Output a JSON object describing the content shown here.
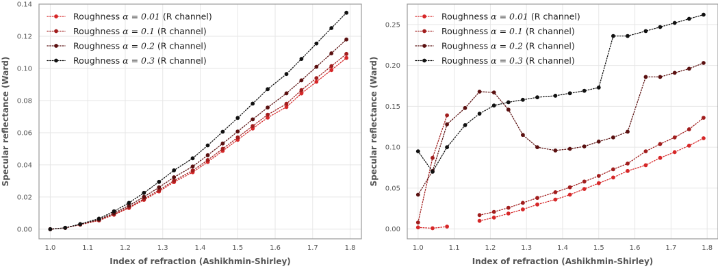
{
  "chart_data": [
    {
      "type": "line",
      "title": "",
      "xlabel": "Index of refraction (Ashikhmin-Shirley)",
      "ylabel": "Specular reflectance (Ward)",
      "xlim": [
        0.97,
        1.83
      ],
      "ylim": [
        -0.006,
        0.14
      ],
      "xticks": [
        "1.0",
        "1.1",
        "1.2",
        "1.3",
        "1.4",
        "1.5",
        "1.6",
        "1.7",
        "1.8"
      ],
      "yticks": [
        "0.00",
        "0.02",
        "0.04",
        "0.06",
        "0.08",
        "0.10",
        "0.12",
        "0.14"
      ],
      "grid": true,
      "legend_position": "top-left",
      "x": [
        1.0,
        1.04,
        1.08,
        1.13,
        1.17,
        1.21,
        1.25,
        1.29,
        1.33,
        1.38,
        1.42,
        1.46,
        1.5,
        1.54,
        1.58,
        1.63,
        1.67,
        1.71,
        1.75,
        1.79
      ],
      "series": [
        {
          "name_prefix": "Roughness ",
          "name_math": "α = 0.01",
          "name_suffix": " (R channel)",
          "color": "#d62728",
          "values": [
            0.0,
            0.0008,
            0.0028,
            0.0054,
            0.009,
            0.0132,
            0.0182,
            0.0235,
            0.0293,
            0.0354,
            0.0418,
            0.0487,
            0.0556,
            0.0626,
            0.0694,
            0.076,
            0.0844,
            0.0917,
            0.099,
            0.1065
          ]
        },
        {
          "name_prefix": "Roughness ",
          "name_math": "α = 0.1",
          "name_suffix": " (R channel)",
          "color": "#a11d1d",
          "values": [
            0.0,
            0.0008,
            0.0029,
            0.0056,
            0.0093,
            0.0137,
            0.0188,
            0.0243,
            0.0302,
            0.0365,
            0.043,
            0.05,
            0.0571,
            0.0642,
            0.0712,
            0.078,
            0.0865,
            0.094,
            0.1014,
            0.109
          ]
        },
        {
          "name_prefix": "Roughness ",
          "name_math": "α = 0.2",
          "name_suffix": " (R channel)",
          "color": "#5a1010",
          "values": [
            0.0,
            0.0008,
            0.003,
            0.006,
            0.01,
            0.0147,
            0.0201,
            0.026,
            0.0323,
            0.039,
            0.046,
            0.0533,
            0.0608,
            0.0683,
            0.0757,
            0.0845,
            0.0926,
            0.101,
            0.1094,
            0.118
          ]
        },
        {
          "name_prefix": "Roughness ",
          "name_math": "α = 0.3",
          "name_suffix": " (R channel)",
          "color": "#111111",
          "values": [
            0.0,
            0.0009,
            0.0032,
            0.0066,
            0.0111,
            0.0164,
            0.0226,
            0.0294,
            0.0366,
            0.0441,
            0.0521,
            0.0606,
            0.0692,
            0.0781,
            0.0871,
            0.0965,
            0.1059,
            0.1155,
            0.1251,
            0.1346
          ]
        }
      ]
    },
    {
      "type": "line",
      "title": "",
      "xlabel": "Index of refraction (Ashikhmin-Shirley)",
      "ylabel": "Specular reflectance (Ward)",
      "xlim": [
        0.97,
        1.83
      ],
      "ylim": [
        -0.012,
        0.275
      ],
      "xticks": [
        "1.0",
        "1.1",
        "1.2",
        "1.3",
        "1.4",
        "1.5",
        "1.6",
        "1.7",
        "1.8"
      ],
      "yticks": [
        "0.00",
        "0.05",
        "0.10",
        "0.15",
        "0.20",
        "0.25"
      ],
      "grid": true,
      "legend_position": "top-left",
      "x": [
        1.0,
        1.04,
        1.08,
        1.13,
        1.17,
        1.21,
        1.25,
        1.29,
        1.33,
        1.38,
        1.42,
        1.46,
        1.5,
        1.54,
        1.58,
        1.63,
        1.67,
        1.71,
        1.75,
        1.79
      ],
      "series": [
        {
          "name_prefix": "Roughness ",
          "name_math": "α = 0.01",
          "name_suffix": " (R channel)",
          "color": "#d62728",
          "values": [
            0.002,
            0.001,
            0.003,
            null,
            0.01,
            0.014,
            0.019,
            0.024,
            0.03,
            0.036,
            0.042,
            0.049,
            0.056,
            0.063,
            0.071,
            0.078,
            0.087,
            0.094,
            0.102,
            0.111
          ]
        },
        {
          "name_prefix": "Roughness ",
          "name_math": "α = 0.1",
          "name_suffix": " (R channel)",
          "color": "#a11d1d",
          "values": [
            0.008,
            0.087,
            0.139,
            null,
            0.017,
            0.021,
            0.026,
            0.032,
            0.038,
            0.045,
            0.051,
            0.058,
            0.065,
            0.073,
            0.08,
            0.095,
            0.104,
            0.112,
            0.122,
            0.136
          ]
        },
        {
          "name_prefix": "Roughness ",
          "name_math": "α = 0.2",
          "name_suffix": " (R channel)",
          "color": "#5a1010",
          "values": [
            0.042,
            0.071,
            0.128,
            0.148,
            0.168,
            0.167,
            0.146,
            0.115,
            0.1,
            0.096,
            0.098,
            0.101,
            0.107,
            0.112,
            0.119,
            0.186,
            0.186,
            0.191,
            0.196,
            0.203
          ]
        },
        {
          "name_prefix": "Roughness ",
          "name_math": "α = 0.3",
          "name_suffix": " (R channel)",
          "color": "#111111",
          "values": [
            0.095,
            0.07,
            0.1,
            0.127,
            0.141,
            0.151,
            0.155,
            0.158,
            0.161,
            0.163,
            0.166,
            0.169,
            0.173,
            0.236,
            0.236,
            0.242,
            0.247,
            0.252,
            0.257,
            0.262
          ]
        }
      ]
    }
  ]
}
